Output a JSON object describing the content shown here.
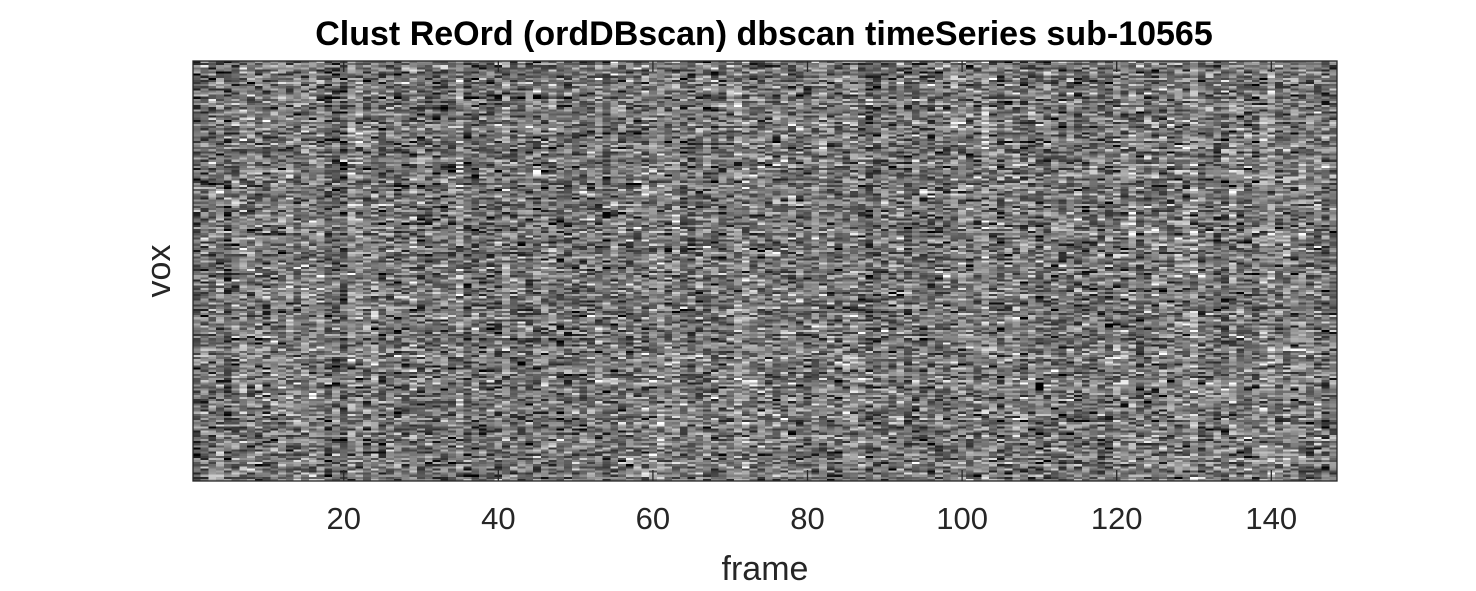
{
  "chart_data": {
    "type": "heatmap",
    "title": "Clust ReOrd (ordDBscan) dbscan timeSeries sub-10565",
    "xlabel": "frame",
    "ylabel": "vox",
    "xlim": [
      0.5,
      148.5
    ],
    "n_frames": 148,
    "x_ticks": [
      20,
      40,
      60,
      80,
      100,
      120,
      140
    ],
    "x_tick_labels": [
      "20",
      "40",
      "60",
      "80",
      "100",
      "120",
      "140"
    ],
    "y_ticks": [],
    "colormap": "gray",
    "grid": false,
    "legend": "none",
    "colors": {
      "axis": "#262626",
      "background": "#ffffff"
    }
  }
}
